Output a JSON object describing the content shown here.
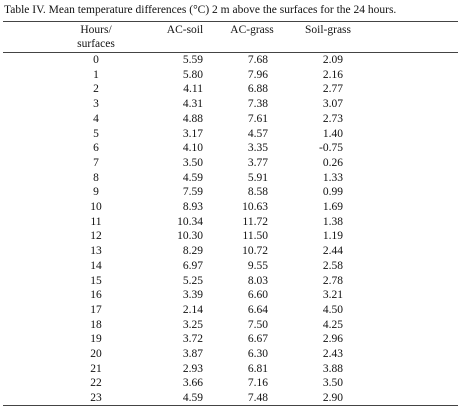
{
  "caption": "Table IV. Mean temperature differences (°C) 2 m above the surfaces for the 24 hours.",
  "table": {
    "header": [
      "Hours/ surfaces",
      "AC-soil",
      "AC-grass",
      "Soil-grass"
    ],
    "rows": [
      [
        "0",
        "5.59",
        "7.68",
        "2.09"
      ],
      [
        "1",
        "5.80",
        "7.96",
        "2.16"
      ],
      [
        "2",
        "4.11",
        "6.88",
        "2.77"
      ],
      [
        "3",
        "4.31",
        "7.38",
        "3.07"
      ],
      [
        "4",
        "4.88",
        "7.61",
        "2.73"
      ],
      [
        "5",
        "3.17",
        "4.57",
        "1.40"
      ],
      [
        "6",
        "4.10",
        "3.35",
        "-0.75"
      ],
      [
        "7",
        "3.50",
        "3.77",
        "0.26"
      ],
      [
        "8",
        "4.59",
        "5.91",
        "1.33"
      ],
      [
        "9",
        "7.59",
        "8.58",
        "0.99"
      ],
      [
        "10",
        "8.93",
        "10.63",
        "1.69"
      ],
      [
        "11",
        "10.34",
        "11.72",
        "1.38"
      ],
      [
        "12",
        "10.30",
        "11.50",
        "1.19"
      ],
      [
        "13",
        "8.29",
        "10.72",
        "2.44"
      ],
      [
        "14",
        "6.97",
        "9.55",
        "2.58"
      ],
      [
        "15",
        "5.25",
        "8.03",
        "2.78"
      ],
      [
        "16",
        "3.39",
        "6.60",
        "3.21"
      ],
      [
        "17",
        "2.14",
        "6.64",
        "4.50"
      ],
      [
        "18",
        "3.25",
        "7.50",
        "4.25"
      ],
      [
        "19",
        "3.72",
        "6.67",
        "2.96"
      ],
      [
        "20",
        "3.87",
        "6.30",
        "2.43"
      ],
      [
        "21",
        "2.93",
        "6.81",
        "3.88"
      ],
      [
        "22",
        "3.66",
        "7.16",
        "3.50"
      ],
      [
        "23",
        "4.59",
        "7.48",
        "2.90"
      ]
    ]
  }
}
